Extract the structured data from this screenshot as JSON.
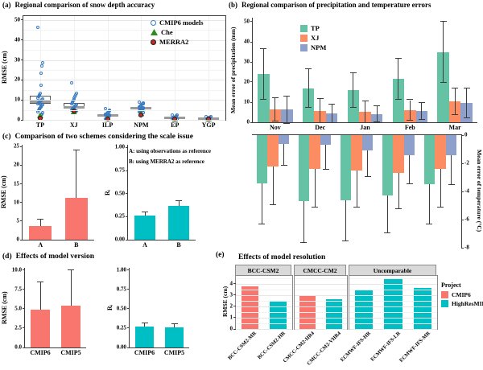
{
  "colors": {
    "tp": "#66C2A5",
    "xj": "#FC8D62",
    "npm": "#8DA0CB",
    "salmon": "#F8766D",
    "teal": "#00BFC4",
    "cmip6_blue": "#3A7CC2",
    "che_green": "#2E8B22",
    "merra2_red": "#CB2A24"
  },
  "chart_data": [
    {
      "id": "a",
      "type": "boxplot",
      "panel_label": "(a)",
      "title": "Regional comparison of snow depth accuracy",
      "ylabel": "RMSE (cm)",
      "ylim": [
        0,
        52
      ],
      "yticks": [
        [
          0,
          "0"
        ],
        [
          10,
          "10"
        ],
        [
          20,
          "20"
        ],
        [
          30,
          "30"
        ],
        [
          40,
          "40"
        ],
        [
          50,
          "50"
        ]
      ],
      "yminor": [
        5,
        15,
        25,
        35,
        45
      ],
      "categories": [
        "TP",
        "XJ",
        "ILP",
        "NPM",
        "EP",
        "YGP"
      ],
      "legend": [
        "CMIP6 models",
        "Che",
        "MERRA2"
      ],
      "boxes": [
        {
          "lo": 6.8,
          "q1": 7.9,
          "med": 8.9,
          "q3": 11.9,
          "hi": 13.2
        },
        {
          "lo": 4.6,
          "q1": 5.6,
          "med": 6.3,
          "q3": 8.6,
          "hi": 9.8
        },
        {
          "lo": 1.5,
          "q1": 1.9,
          "med": 2.3,
          "q3": 2.7,
          "hi": 3.2
        },
        {
          "lo": 4.4,
          "q1": 5.1,
          "med": 5.8,
          "q3": 6.6,
          "hi": 7.4
        },
        {
          "lo": 0.4,
          "q1": 0.6,
          "med": 0.9,
          "q3": 1.2,
          "hi": 1.6
        },
        {
          "lo": 0.35,
          "q1": 0.55,
          "med": 0.8,
          "q3": 1.05,
          "hi": 1.4
        }
      ],
      "cmip6_points": [
        [
          46.5,
          28.5,
          27.2,
          23.5,
          17.5,
          13.2,
          12.6,
          12.0,
          11.5,
          11.0,
          10.6,
          10.2,
          9.8,
          9.5,
          9.2,
          8.9,
          8.6,
          8.3,
          8.0,
          7.7,
          7.4,
          7.0,
          6.6,
          6.2,
          5.8,
          5.3,
          4.8,
          4.2,
          3.6,
          3.0,
          2.4
        ],
        [
          18.5,
          13.2,
          12.4,
          11.6,
          10.8,
          10.1,
          9.5,
          9.0,
          8.5,
          8.0,
          7.6,
          7.2,
          6.8,
          6.4,
          6.1,
          5.8,
          5.5,
          5.2,
          4.9,
          4.6,
          4.3
        ],
        [
          5.5,
          5.0,
          4.6,
          4.2,
          3.8,
          3.5,
          3.2,
          2.9,
          2.7,
          2.5,
          2.3,
          2.1,
          1.9,
          1.7,
          1.5,
          1.2,
          0.9,
          0.6
        ],
        [
          9.0,
          8.6,
          8.2,
          7.9,
          7.6,
          7.3,
          7.0,
          6.7,
          6.4,
          6.2,
          6.0,
          5.8,
          5.6,
          5.4,
          5.2,
          5.0,
          4.7,
          4.4,
          4.1,
          3.8,
          3.5
        ],
        [
          2.6,
          2.3,
          2.0,
          1.8,
          1.6,
          1.4,
          1.2,
          1.0,
          0.8,
          0.6,
          0.5
        ],
        [
          1.6,
          1.45,
          1.3,
          1.15,
          1.0,
          0.85,
          0.7,
          0.6,
          0.5
        ]
      ],
      "che": [
        2.3,
        4.2,
        0.8,
        3.2,
        0.5,
        0.5
      ],
      "merra2": [
        1.0,
        4.6,
        0.5,
        2.6,
        0.4,
        0.4
      ]
    },
    {
      "id": "b_precip",
      "type": "bar",
      "panel_label": "(b)",
      "title": "Regional comparison of precipitation and temperature errors",
      "ylabel": "Mean error of precipitation (mm)",
      "ylim": [
        0,
        52
      ],
      "yticks": [
        [
          0,
          "0"
        ],
        [
          10,
          "10"
        ],
        [
          20,
          "20"
        ],
        [
          30,
          "30"
        ],
        [
          40,
          "40"
        ],
        [
          50,
          "50"
        ]
      ],
      "categories": [
        "Nov",
        "Dec",
        "Jan",
        "Feb",
        "Mar"
      ],
      "err_mode": "sym-both",
      "show_xlab": true,
      "group_frac": 0.78,
      "series": [
        {
          "name": "TP",
          "color": "tp",
          "values": [
            24,
            17,
            16,
            21.5,
            35
          ],
          "err_hi": [
            36.5,
            26.5,
            24.5,
            31.5,
            50
          ]
        },
        {
          "name": "XJ",
          "color": "xj",
          "values": [
            6.4,
            5.8,
            5.3,
            6.2,
            10.5
          ],
          "err_hi": [
            12,
            11.5,
            10.5,
            11,
            17
          ]
        },
        {
          "name": "NPM",
          "color": "npm",
          "values": [
            6.4,
            4.5,
            4.2,
            5.6,
            9.8
          ],
          "err_hi": [
            13,
            9,
            8,
            9.5,
            17
          ]
        }
      ]
    },
    {
      "id": "b_temp",
      "type": "bar",
      "ylabel": "Mean error of temperature (°C)",
      "ylim": [
        -8,
        0
      ],
      "yticks": [
        [
          0,
          "0"
        ],
        [
          -2,
          "-2"
        ],
        [
          -4,
          "-4"
        ],
        [
          -6,
          "-6"
        ],
        [
          -8,
          "-8"
        ]
      ],
      "ticks_side": "right",
      "categories": [
        "Nov",
        "Dec",
        "Jan",
        "Feb",
        "Mar"
      ],
      "err_mode": "down",
      "show_xlab": false,
      "group_frac": 0.78,
      "series": [
        {
          "name": "TP",
          "color": "tp",
          "values": [
            -3.4,
            -4.7,
            -4.6,
            -4.3,
            -3.5
          ],
          "err_lo": [
            -6.3,
            -7.6,
            -7.5,
            -6.9,
            -6.3
          ]
        },
        {
          "name": "XJ",
          "color": "xj",
          "values": [
            -2.2,
            -2.4,
            -2.5,
            -2.7,
            -2.4
          ],
          "err_lo": [
            -4.9,
            -5.1,
            -5.1,
            -5.2,
            -5.1
          ]
        },
        {
          "name": "NPM",
          "color": "npm",
          "values": [
            -0.6,
            -0.7,
            -1.1,
            -1.4,
            -1.4
          ],
          "err_lo": [
            -2.1,
            -2.4,
            -2.9,
            -3.4,
            -3.5
          ]
        }
      ]
    },
    {
      "id": "c_rmse",
      "type": "bar",
      "panel_label": "(c)",
      "title": "Comparison of two schemes considering the scale issue",
      "ylabel": "RMSE (cm)",
      "ylim": [
        0,
        25.5
      ],
      "yticks": [
        [
          0,
          "0"
        ],
        [
          5,
          "5"
        ],
        [
          10,
          "10"
        ],
        [
          15,
          "15"
        ],
        [
          20,
          "20"
        ],
        [
          25,
          "25"
        ]
      ],
      "categories": [
        "A",
        "B"
      ],
      "err_mode": "up",
      "show_xlab": true,
      "group_frac": 0.62,
      "color": "salmon",
      "values": [
        3.6,
        11.2
      ],
      "err_hi": [
        5.5,
        24.0
      ]
    },
    {
      "id": "c_r",
      "type": "bar",
      "ylabel": "Rᵢ",
      "ylim": [
        0,
        1.03
      ],
      "yticks": [
        [
          0,
          "0.00"
        ],
        [
          0.25,
          "0.25"
        ],
        [
          0.5,
          "0.50"
        ],
        [
          0.75,
          "0.75"
        ],
        [
          1,
          "1.00"
        ]
      ],
      "categories": [
        "A",
        "B"
      ],
      "err_mode": "up",
      "show_xlab": true,
      "group_frac": 0.62,
      "color": "teal",
      "values": [
        0.26,
        0.37
      ],
      "err_hi": [
        0.3,
        0.42
      ],
      "annotations": [
        "A: using observations as reference",
        "B: using MERRA2 as reference"
      ]
    },
    {
      "id": "d_rmse",
      "type": "bar",
      "panel_label": "(d)",
      "title": "Effects of model version",
      "ylabel": "RMSE (cm)",
      "ylim": [
        0,
        10.3
      ],
      "yticks": [
        [
          0,
          "0.0"
        ],
        [
          2.5,
          "2.5"
        ],
        [
          5,
          "5.0"
        ],
        [
          7.5,
          "7.5"
        ],
        [
          10,
          "10.0"
        ]
      ],
      "categories": [
        "CMIP6",
        "CMIP5"
      ],
      "err_mode": "up",
      "show_xlab": true,
      "group_frac": 0.62,
      "color": "salmon",
      "values": [
        4.9,
        5.4
      ],
      "err_hi": [
        8.4,
        10.0
      ]
    },
    {
      "id": "d_r",
      "type": "bar",
      "ylabel": "Rᵢ",
      "ylim": [
        0,
        1.03
      ],
      "yticks": [
        [
          0,
          "0.00"
        ],
        [
          0.25,
          "0.25"
        ],
        [
          0.5,
          "0.50"
        ],
        [
          0.75,
          "0.75"
        ],
        [
          1,
          "1.00"
        ]
      ],
      "categories": [
        "CMIP6",
        "CMIP5"
      ],
      "err_mode": "up",
      "show_xlab": true,
      "group_frac": 0.62,
      "color": "teal",
      "values": [
        0.27,
        0.26
      ],
      "err_hi": [
        0.31,
        0.3
      ]
    },
    {
      "id": "e",
      "type": "faceted-bar",
      "panel_label": "(e)",
      "title": "Effects of model resolution",
      "ylabel": "RMSE (cm)",
      "ylim": [
        0,
        4.7
      ],
      "yticks": [
        [
          0,
          "0"
        ],
        [
          1,
          "1"
        ],
        [
          2,
          "2"
        ],
        [
          3,
          "3"
        ],
        [
          4,
          "4"
        ]
      ],
      "yminor": [
        0.5,
        1.5,
        2.5,
        3.5,
        4.5
      ],
      "facets": [
        {
          "label": "BCC-CSM2",
          "bars": [
            {
              "model": "BCC-CSM2-MR",
              "project": "CMIP6",
              "value": 3.75
            },
            {
              "model": "BCC-CSM2-HR",
              "project": "HighResMIP",
              "value": 2.45
            }
          ]
        },
        {
          "label": "CMCC-CM2",
          "bars": [
            {
              "model": "CMCC-CM2-HR4",
              "project": "CMIP6",
              "value": 2.9
            },
            {
              "model": "CMCC-CM2-VHR4",
              "project": "HighResMIP",
              "value": 2.6
            }
          ]
        },
        {
          "label": "Uncomparable",
          "bars": [
            {
              "model": "ECMWF-IFS-HR",
              "project": "HighResMIP",
              "value": 3.4
            },
            {
              "model": "ECMWF-IFS-LR",
              "project": "HighResMIP",
              "value": 4.45
            },
            {
              "model": "ECMWF-IFS-MR",
              "project": "HighResMIP",
              "value": 3.6
            }
          ]
        }
      ],
      "legend": {
        "title": "Project",
        "items": [
          {
            "label": "CMIP6",
            "color": "salmon"
          },
          {
            "label": "HighResMIP",
            "color": "teal"
          }
        ]
      }
    }
  ]
}
